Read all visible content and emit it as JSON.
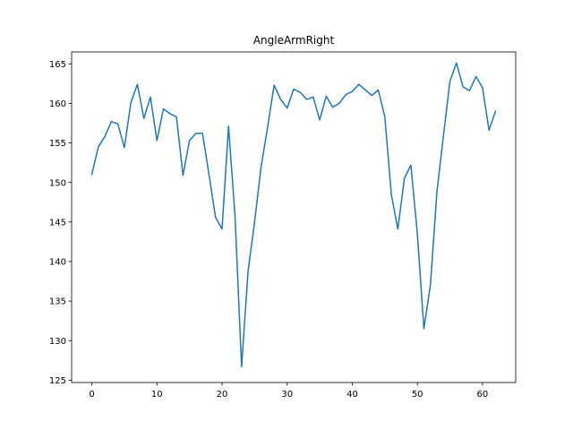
{
  "chart_data": {
    "type": "line",
    "title": "AngleArmRight",
    "xlabel": "",
    "ylabel": "",
    "xlim": [
      -3.1,
      65.1
    ],
    "ylim": [
      124.7,
      166.5
    ],
    "xticks": [
      0,
      10,
      20,
      30,
      40,
      50,
      60
    ],
    "yticks": [
      125,
      130,
      135,
      140,
      145,
      150,
      155,
      160,
      165
    ],
    "grid": false,
    "line_color": "#1f77b4",
    "series": [
      {
        "x": [
          0,
          1,
          2,
          3,
          4,
          5,
          6,
          7,
          8,
          9,
          10,
          11,
          12,
          13,
          14,
          15,
          16,
          17,
          18,
          19,
          20,
          21,
          22,
          23,
          24,
          25,
          26,
          27,
          28,
          29,
          30,
          31,
          32,
          33,
          34,
          35,
          36,
          37,
          38,
          39,
          40,
          41,
          42,
          43,
          44,
          45,
          46,
          47,
          48,
          49,
          50,
          51,
          52,
          53,
          54,
          55,
          56,
          57,
          58,
          59,
          60,
          61,
          62
        ],
        "y": [
          151.0,
          154.5,
          155.8,
          157.7,
          157.4,
          154.4,
          160.1,
          162.4,
          158.1,
          160.8,
          155.3,
          159.3,
          158.7,
          158.3,
          150.9,
          155.3,
          156.2,
          156.2,
          151.0,
          145.6,
          144.1,
          157.1,
          145.7,
          126.7,
          138.8,
          145.0,
          152.0,
          157.0,
          162.3,
          160.5,
          159.4,
          161.8,
          161.4,
          160.5,
          160.8,
          157.9,
          160.9,
          159.5,
          160.0,
          161.1,
          161.5,
          162.4,
          161.7,
          161.0,
          161.7,
          158.3,
          148.5,
          144.1,
          150.5,
          152.2,
          143.5,
          131.5,
          137.0,
          148.8,
          155.9,
          162.8,
          165.1,
          162.1,
          161.6,
          163.4,
          162.0,
          156.6,
          159.0
        ]
      }
    ]
  }
}
